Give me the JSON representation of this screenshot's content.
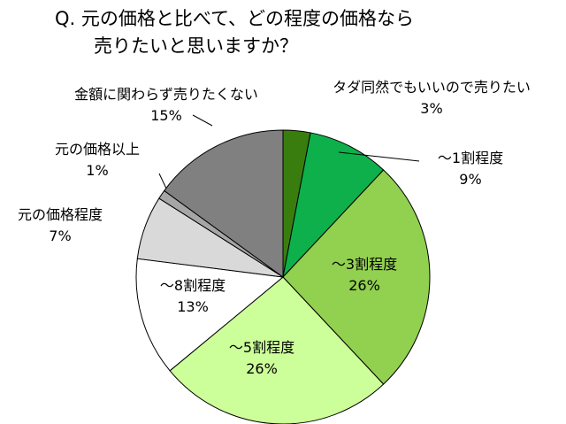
{
  "chart_data": {
    "type": "pie",
    "title": "Q. 元の価格と比べて、どの程度の価格なら売りたいと思いますか？",
    "title_lines": [
      "Q. 元の価格と比べて、どの程度の価格なら",
      "売りたいと思いますか？"
    ],
    "unit": "%",
    "slices": [
      {
        "label": "タダ同然でもいいので売りたい",
        "value": 3,
        "value_label": "3%",
        "color": "#3a7d0f"
      },
      {
        "label": "～1割程度",
        "value": 9,
        "value_label": "9%",
        "color": "#0db04a"
      },
      {
        "label": "～3割程度",
        "value": 26,
        "value_label": "26%",
        "color": "#92d050"
      },
      {
        "label": "～5割程度",
        "value": 26,
        "value_label": "26%",
        "color": "#ccff99"
      },
      {
        "label": "～8割程度",
        "value": 13,
        "value_label": "13%",
        "color": "#ffffff"
      },
      {
        "label": "元の価格程度",
        "value": 7,
        "value_label": "7%",
        "color": "#d9d9d9"
      },
      {
        "label": "元の価格以上",
        "value": 1,
        "value_label": "1%",
        "color": "#a6a6a6"
      },
      {
        "label": "金額に関わらず売りたくない",
        "value": 15,
        "value_label": "15%",
        "color": "#808080"
      }
    ]
  }
}
